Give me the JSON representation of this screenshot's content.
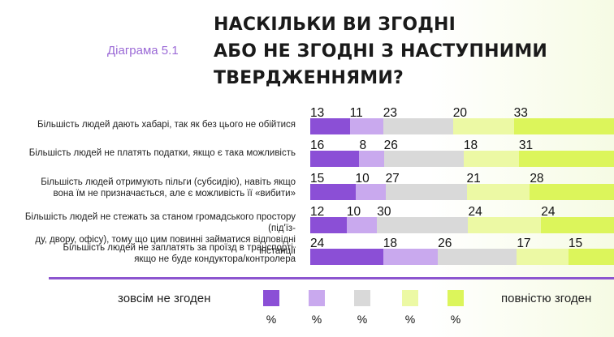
{
  "header": {
    "subtitle": "Діаграма 5.1",
    "title_lines": [
      "НАСКІЛЬКИ ВИ ЗГОДНІ",
      "АБО НЕ ЗГОДНІ З НАСТУПНИМИ",
      "ТВЕРДЖЕННЯМИ?"
    ]
  },
  "legend": {
    "left_label": "зовсім не згоден",
    "right_label": "повністю згоден",
    "unit": "%"
  },
  "chart_data": {
    "type": "bar",
    "orientation": "horizontal",
    "stacked": true,
    "title": "НАСКІЛЬКИ ВИ ЗГОДНІ АБО НЕ ЗГОДНІ З НАСТУПНИМИ ТВЕРДЖЕННЯМИ?",
    "categories": [
      [
        "Більшість людей дають хабарі, так як без цього не обійтися"
      ],
      [
        "Більшість людей не платять податки, якщо є така можливість"
      ],
      [
        "Більшість людей отримують пільги (субсидію), навіть якщо",
        "вона їм не призначається, але є можливість її «вибити»"
      ],
      [
        "Більшість людей не стежать за станом громадського простору (під'їз-",
        "ду, двору, офісу), тому що цим повинні займатися відповідні інстанції"
      ],
      [
        "Більшість людей не заплатять за проїзд в транспорті,",
        "якщо не буде кондуктора/контролера"
      ]
    ],
    "series_colors": [
      "#8b4fd6",
      "#c9a9ee",
      "#d9d9d9",
      "#ecf9a4",
      "#dcf55b"
    ],
    "rows": [
      [
        13,
        11,
        23,
        20,
        33
      ],
      [
        16,
        8,
        26,
        18,
        31
      ],
      [
        15,
        10,
        27,
        21,
        28
      ],
      [
        12,
        10,
        30,
        24,
        24
      ],
      [
        24,
        18,
        26,
        17,
        15
      ]
    ],
    "xlim": [
      0,
      100
    ]
  }
}
